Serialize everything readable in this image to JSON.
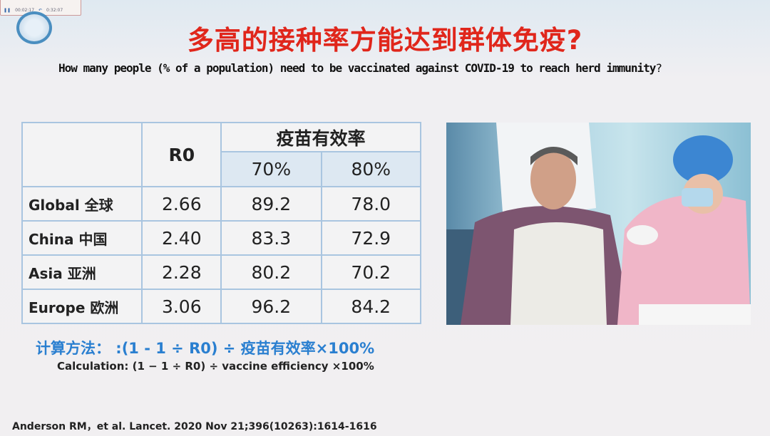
{
  "player_toolbar": {
    "elapsed": "00:02:17",
    "total": "0:32:07"
  },
  "slide": {
    "title": "多高的接种率方能达到群体免疫?",
    "subtitle": "How many people (% of a population) need to be vaccinated against COVID-19 to reach herd immunity",
    "subtitle_q": "?",
    "table": {
      "header_r0": "R0",
      "header_efficacy": "疫苗有效率",
      "efficacy_levels": [
        "70%",
        "80%"
      ],
      "rows": [
        {
          "region": "Global 全球",
          "r0": "2.66",
          "v70": "89.2",
          "v80": "78.0"
        },
        {
          "region": "China 中国",
          "r0": "2.40",
          "v70": "83.3",
          "v80": "72.9"
        },
        {
          "region": "Asia 亚洲",
          "r0": "2.28",
          "v70": "80.2",
          "v80": "70.2"
        },
        {
          "region": "Europe 欧洲",
          "r0": "3.06",
          "v70": "96.2",
          "v80": "84.2"
        }
      ]
    },
    "formula_cn": "计算方法： :(1  -  1 ÷ R0) ÷ 疫苗有效率×100%",
    "formula_en": "Calculation: (1 − 1 ÷ R0) ÷ vaccine efficiency ×100%",
    "reference": "Anderson RM，et al. Lancet. 2020 Nov 21;396(10263):1614-1616"
  }
}
